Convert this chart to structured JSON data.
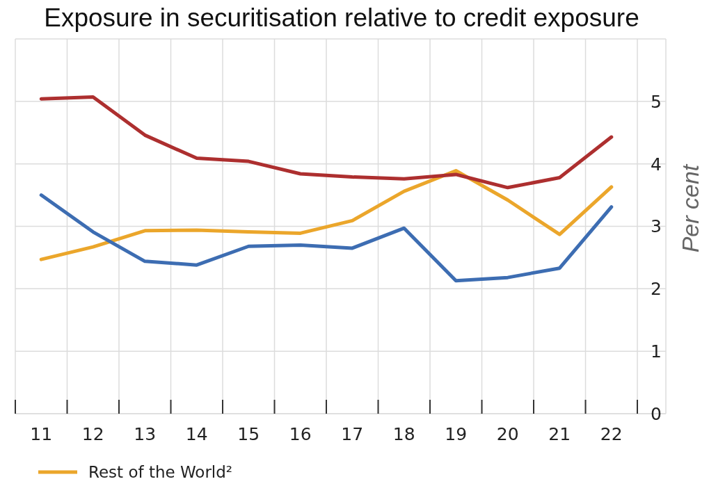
{
  "chart_data": {
    "type": "line",
    "title": "Exposure in securitisation relative to credit exposure",
    "ylabel": "Per cent",
    "categories": [
      "11",
      "12",
      "13",
      "14",
      "15",
      "16",
      "17",
      "18",
      "19",
      "20",
      "21",
      "22"
    ],
    "series": [
      {
        "name": "Rest of the World²",
        "color": "#eba62b",
        "values": [
          2.47,
          2.67,
          2.93,
          2.94,
          2.91,
          2.89,
          3.09,
          3.56,
          3.89,
          3.42,
          2.87,
          3.63
        ]
      },
      {
        "color": "#3d6db2",
        "values": [
          3.5,
          2.91,
          2.44,
          2.38,
          2.68,
          2.7,
          2.65,
          2.97,
          2.13,
          2.18,
          2.33,
          3.31
        ]
      },
      {
        "color": "#ad2f2f",
        "values": [
          5.04,
          5.07,
          4.46,
          4.09,
          4.04,
          3.84,
          3.79,
          3.76,
          3.83,
          3.62,
          3.78,
          4.43
        ]
      }
    ],
    "ylim": [
      0,
      6
    ],
    "yticks": [
      0,
      1,
      2,
      3,
      4,
      5
    ],
    "grid": true,
    "legend": "bottom left",
    "marker": "none",
    "line_style": "solid"
  }
}
